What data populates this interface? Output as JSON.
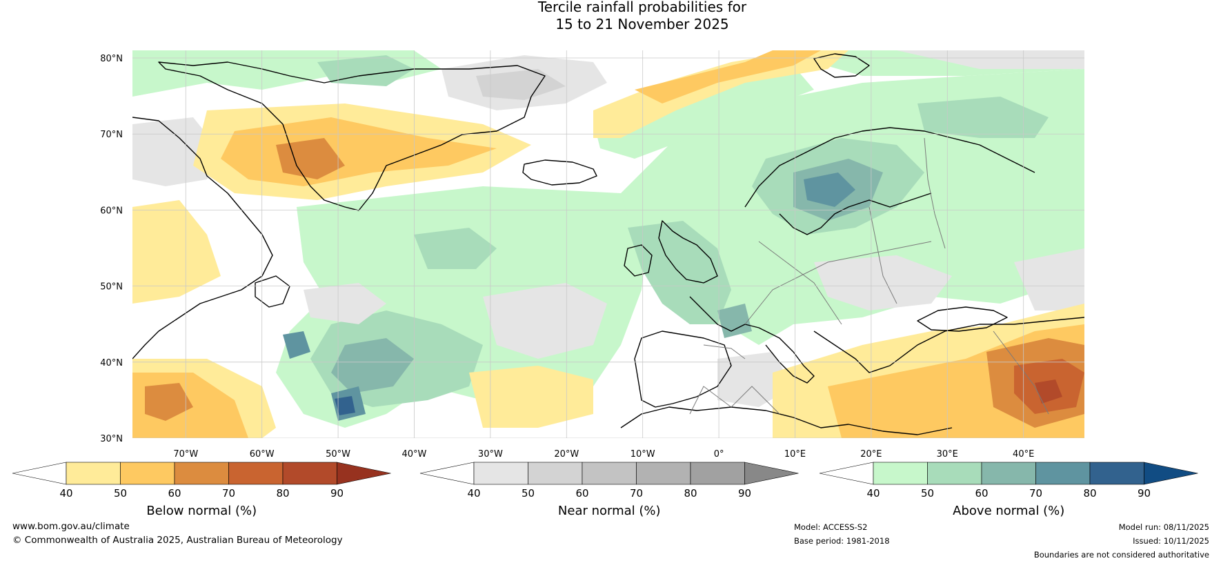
{
  "title": {
    "line1": "Tercile rainfall probabilities for",
    "line2": "15 to 21 November 2025"
  },
  "map": {
    "lat_labels": [
      "80°N",
      "70°N",
      "60°N",
      "50°N",
      "40°N",
      "30°N"
    ],
    "lon_labels": [
      "70°W",
      "60°W",
      "50°W",
      "40°W",
      "30°W",
      "20°W",
      "10°W",
      "0°",
      "10°E",
      "20°E",
      "30°E",
      "40°E"
    ],
    "extent": {
      "lon": [
        -77,
        48
      ],
      "lat": [
        30,
        81
      ]
    }
  },
  "colorbars": [
    {
      "label": "Below normal (%)",
      "ticks": [
        "40",
        "50",
        "60",
        "70",
        "80",
        "90"
      ],
      "under_color": "#ffffff",
      "colors": [
        "#ffeb99",
        "#fec961",
        "#dc8c3f",
        "#c96430",
        "#b24a2a"
      ],
      "over_color": "#97321f"
    },
    {
      "label": "Near normal (%)",
      "ticks": [
        "40",
        "50",
        "60",
        "70",
        "80",
        "90"
      ],
      "under_color": "#ffffff",
      "colors": [
        "#e5e5e5",
        "#d3d3d3",
        "#c3c3c3",
        "#b2b2b2",
        "#a1a1a1"
      ],
      "over_color": "#888888"
    },
    {
      "label": "Above normal (%)",
      "ticks": [
        "40",
        "50",
        "60",
        "70",
        "80",
        "90"
      ],
      "under_color": "#ffffff",
      "colors": [
        "#c7f7cb",
        "#a8dcba",
        "#86b7ab",
        "#5f94a0",
        "#32628e"
      ],
      "over_color": "#114c83"
    }
  ],
  "footer": {
    "website": "www.bom.gov.au/climate",
    "copyright": "© Commonwealth of Australia 2025, Australian Bureau of Meteorology",
    "model": "Model: ACCESS-S2",
    "base_period": "Base period: 1981-2018",
    "model_run": "Model run: 08/11/2025",
    "issued": "Issued: 10/11/2025",
    "disclaimer": "Boundaries are not considered authoritative"
  }
}
